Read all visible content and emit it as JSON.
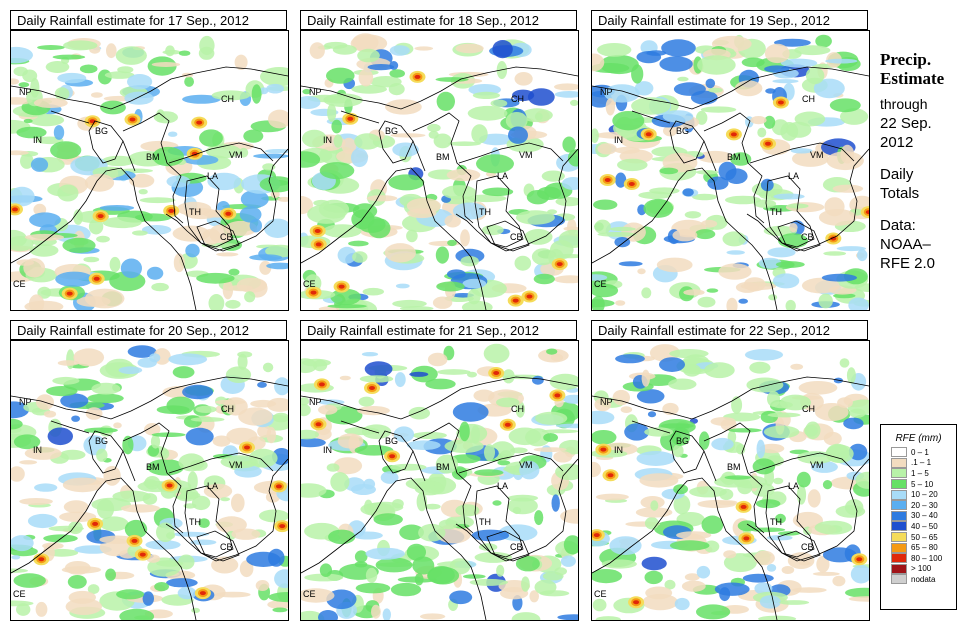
{
  "panels": [
    {
      "title": "Daily Rainfall estimate for  17 Sep., 2012",
      "intensity": 1.0
    },
    {
      "title": "Daily Rainfall estimate for  18 Sep., 2012",
      "intensity": 0.9
    },
    {
      "title": "Daily Rainfall estimate for  19 Sep., 2012",
      "intensity": 0.7
    },
    {
      "title": "Daily Rainfall estimate for  20 Sep., 2012",
      "intensity": 0.75
    },
    {
      "title": "Daily Rainfall estimate for  21 Sep., 2012",
      "intensity": 0.5
    },
    {
      "title": "Daily Rainfall estimate for  22 Sep., 2012",
      "intensity": 0.55
    }
  ],
  "country_labels": [
    "NP",
    "IN",
    "BG",
    "CH",
    "BM",
    "VM",
    "LA",
    "TH",
    "CB",
    "CE"
  ],
  "side": {
    "title_line1": "Precip.",
    "title_line2": "Estimate",
    "through": "through",
    "date_line1": "22 Sep.",
    "date_line2": "2012",
    "daily_line1": "Daily",
    "daily_line2": "Totals",
    "data_line1": "Data:",
    "data_line2": "NOAA–",
    "data_line3": "RFE 2.0"
  },
  "legend": {
    "title": "RFE (mm)",
    "items": [
      {
        "label": "0 – 1",
        "color": "#ffffff"
      },
      {
        "label": ".1 – 1",
        "color": "#f2dcc0"
      },
      {
        "label": "1 – 5",
        "color": "#b8f2a8"
      },
      {
        "label": "5 – 10",
        "color": "#66e066"
      },
      {
        "label": "10 – 20",
        "color": "#a8dcf8"
      },
      {
        "label": "20 – 30",
        "color": "#5aaef0"
      },
      {
        "label": "30 – 40",
        "color": "#2e7be0"
      },
      {
        "label": "40 – 50",
        "color": "#1e4fcf"
      },
      {
        "label": "50 – 65",
        "color": "#f5dc5a"
      },
      {
        "label": "65 – 80",
        "color": "#f59a14"
      },
      {
        "label": "80 – 100",
        "color": "#e0280a"
      },
      {
        "label": "> 100",
        "color": "#a01418"
      },
      {
        "label": "nodata",
        "color": "#cfcfcf"
      }
    ]
  }
}
